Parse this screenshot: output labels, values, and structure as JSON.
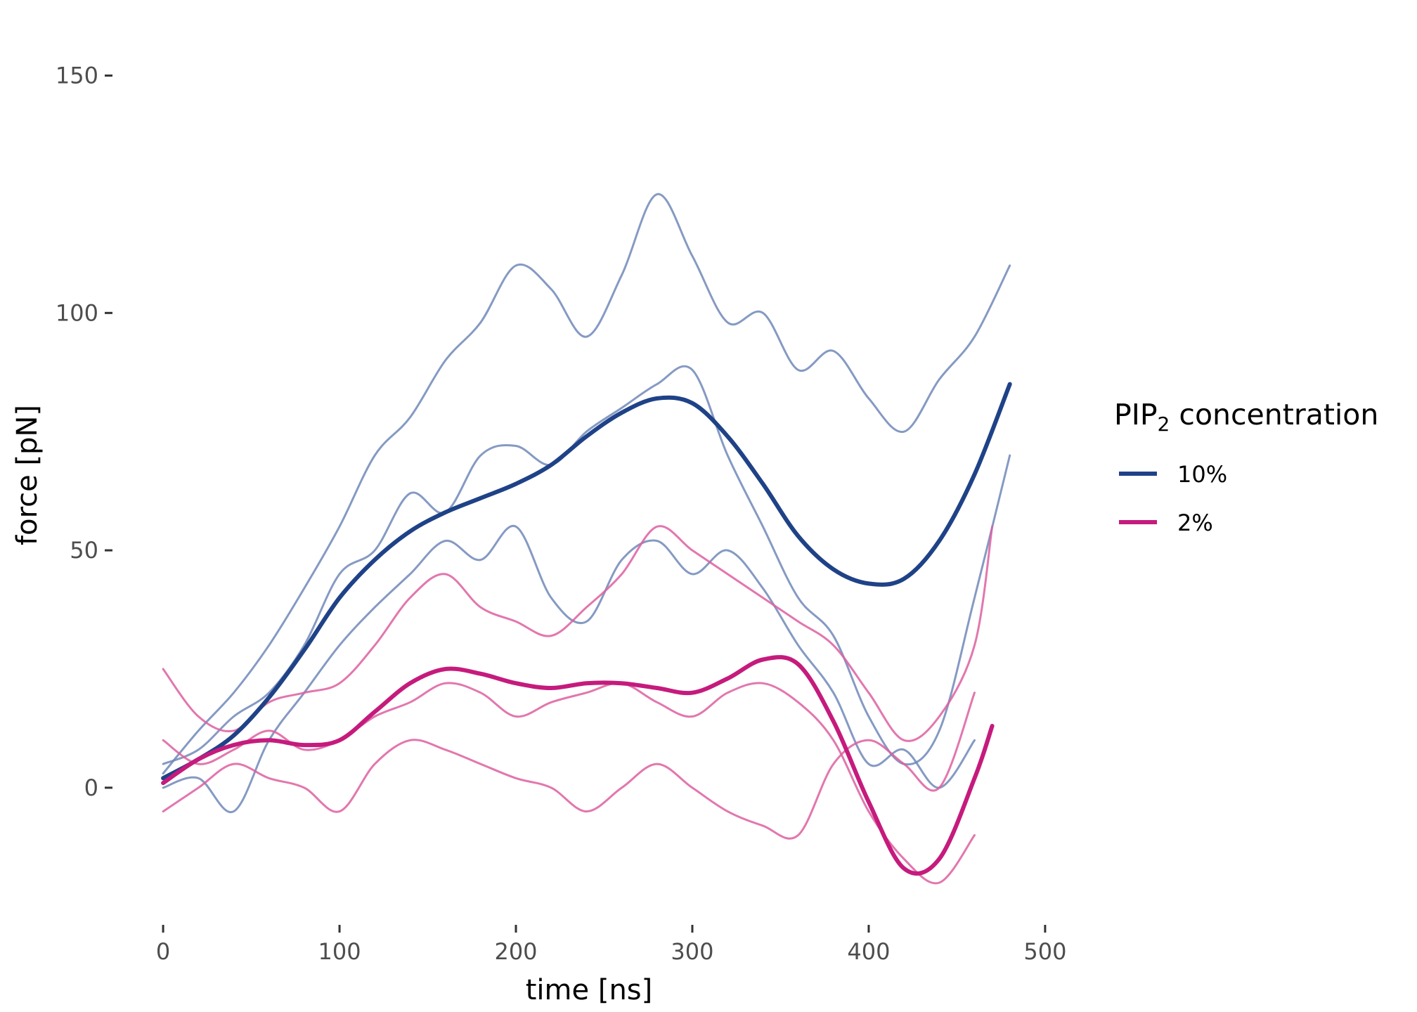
{
  "chart_data": {
    "type": "line",
    "xlabel": "time [ns]",
    "ylabel": "force [pN]",
    "xlim": [
      -8,
      510
    ],
    "ylim": [
      -28,
      160
    ],
    "x_ticks": [
      0,
      100,
      200,
      300,
      400,
      500
    ],
    "y_ticks": [
      0,
      50,
      100,
      150
    ],
    "grid": false,
    "legend": {
      "title_main": "PIP",
      "title_sub": "2",
      "title_rest": " concentration",
      "placement": "right",
      "items": [
        {
          "label": "10%",
          "color": "#1f4287"
        },
        {
          "label": "2%",
          "color": "#c51b7d"
        }
      ]
    },
    "series": [
      {
        "name": "10%",
        "role": "smooth",
        "color": "#1f4287",
        "x": [
          0,
          20,
          40,
          60,
          80,
          100,
          120,
          140,
          160,
          180,
          200,
          220,
          240,
          260,
          280,
          300,
          320,
          340,
          360,
          380,
          400,
          420,
          440,
          460,
          480
        ],
        "y": [
          2,
          6,
          11,
          19,
          29,
          40,
          48,
          54,
          58,
          61,
          64,
          68,
          74,
          79,
          82,
          81,
          74,
          64,
          53,
          46,
          43,
          44,
          52,
          66,
          85
        ]
      },
      {
        "name": "2%",
        "role": "smooth",
        "color": "#c51b7d",
        "x": [
          0,
          20,
          40,
          60,
          80,
          100,
          120,
          140,
          160,
          180,
          200,
          220,
          240,
          260,
          280,
          300,
          320,
          340,
          360,
          380,
          400,
          420,
          440,
          460,
          470
        ],
        "y": [
          1,
          6,
          9,
          10,
          9,
          10,
          16,
          22,
          25,
          24,
          22,
          21,
          22,
          22,
          21,
          20,
          23,
          27,
          26,
          14,
          -3,
          -17,
          -15,
          2,
          13
        ]
      },
      {
        "name": "10%",
        "role": "replicate",
        "color": "#7088b8",
        "x": [
          0,
          20,
          40,
          60,
          80,
          100,
          120,
          140,
          160,
          180,
          200,
          220,
          240,
          260,
          280,
          300,
          320,
          340,
          360,
          380,
          400,
          420,
          440,
          460,
          480
        ],
        "y": [
          3,
          12,
          20,
          30,
          42,
          55,
          70,
          78,
          90,
          98,
          110,
          105,
          95,
          108,
          125,
          112,
          98,
          100,
          88,
          92,
          82,
          75,
          86,
          95,
          110
        ]
      },
      {
        "name": "10%",
        "role": "replicate",
        "color": "#7088b8",
        "x": [
          0,
          20,
          40,
          60,
          80,
          100,
          120,
          140,
          160,
          180,
          200,
          220,
          240,
          260,
          280,
          300,
          320,
          340,
          360,
          380,
          400,
          420,
          440,
          460,
          480
        ],
        "y": [
          5,
          8,
          15,
          20,
          30,
          45,
          50,
          62,
          58,
          70,
          72,
          68,
          75,
          80,
          85,
          88,
          70,
          55,
          40,
          32,
          15,
          5,
          12,
          40,
          70
        ]
      },
      {
        "name": "10%",
        "role": "replicate",
        "color": "#7088b8",
        "x": [
          0,
          20,
          40,
          60,
          80,
          100,
          120,
          140,
          160,
          180,
          200,
          220,
          240,
          260,
          280,
          300,
          320,
          340,
          360,
          380,
          400,
          420,
          440,
          460
        ],
        "y": [
          0,
          2,
          -5,
          10,
          20,
          30,
          38,
          45,
          52,
          48,
          55,
          40,
          35,
          48,
          52,
          45,
          50,
          42,
          30,
          20,
          5,
          8,
          0,
          10
        ]
      },
      {
        "name": "2%",
        "role": "replicate",
        "color": "#dd5fa0",
        "x": [
          0,
          20,
          40,
          60,
          80,
          100,
          120,
          140,
          160,
          180,
          200,
          220,
          240,
          260,
          280,
          300,
          320,
          340,
          360,
          380,
          400,
          420,
          440,
          460,
          470
        ],
        "y": [
          25,
          15,
          12,
          18,
          20,
          22,
          30,
          40,
          45,
          38,
          35,
          32,
          38,
          45,
          55,
          50,
          45,
          40,
          35,
          30,
          20,
          10,
          15,
          30,
          55
        ]
      },
      {
        "name": "2%",
        "role": "replicate",
        "color": "#dd5fa0",
        "x": [
          0,
          20,
          40,
          60,
          80,
          100,
          120,
          140,
          160,
          180,
          200,
          220,
          240,
          260,
          280,
          300,
          320,
          340,
          360,
          380,
          400,
          420,
          440,
          460
        ],
        "y": [
          10,
          5,
          8,
          12,
          8,
          10,
          15,
          18,
          22,
          20,
          15,
          18,
          20,
          22,
          18,
          15,
          20,
          22,
          18,
          10,
          -5,
          -15,
          -20,
          -10
        ]
      },
      {
        "name": "2%",
        "role": "replicate",
        "color": "#dd5fa0",
        "x": [
          0,
          20,
          40,
          60,
          80,
          100,
          120,
          140,
          160,
          180,
          200,
          220,
          240,
          260,
          280,
          300,
          320,
          340,
          360,
          380,
          400,
          420,
          440,
          460
        ],
        "y": [
          -5,
          0,
          5,
          2,
          0,
          -5,
          5,
          10,
          8,
          5,
          2,
          0,
          -5,
          0,
          5,
          0,
          -5,
          -8,
          -10,
          5,
          10,
          5,
          0,
          20
        ]
      }
    ]
  }
}
